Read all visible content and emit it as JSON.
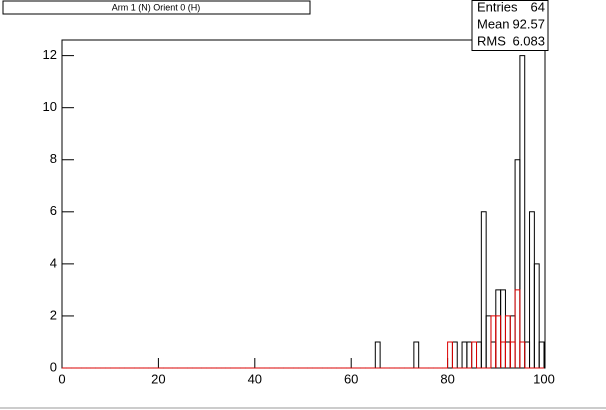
{
  "chart_data": {
    "type": "histogram",
    "title": "Arm 1 (N) Orient 0 (H)",
    "bins": [
      0,
      1,
      2,
      3,
      4,
      5,
      6,
      7,
      8,
      9,
      10,
      11,
      12,
      13,
      14,
      15,
      16,
      17,
      18,
      19,
      20,
      21,
      22,
      23,
      24,
      25,
      26,
      27,
      28,
      29,
      30,
      31,
      32,
      33,
      34,
      35,
      36,
      37,
      38,
      39,
      40,
      41,
      42,
      43,
      44,
      45,
      46,
      47,
      48,
      49,
      50,
      51,
      52,
      53,
      54,
      55,
      56,
      57,
      58,
      59,
      60,
      61,
      62,
      63,
      64,
      65,
      66,
      67,
      68,
      69,
      70,
      71,
      72,
      73,
      74,
      75,
      76,
      77,
      78,
      79,
      80,
      81,
      82,
      83,
      84,
      85,
      86,
      87,
      88,
      89,
      90,
      91,
      92,
      93,
      94,
      95,
      96,
      97,
      98,
      99,
      100
    ],
    "series": [
      {
        "color": "#000000",
        "values": [
          0,
          0,
          0,
          0,
          0,
          0,
          0,
          0,
          0,
          0,
          0,
          0,
          0,
          0,
          0,
          0,
          0,
          0,
          0,
          0,
          0,
          0,
          0,
          0,
          0,
          0,
          0,
          0,
          0,
          0,
          0,
          0,
          0,
          0,
          0,
          0,
          0,
          0,
          0,
          0,
          0,
          0,
          0,
          0,
          0,
          0,
          0,
          0,
          0,
          0,
          0,
          0,
          0,
          0,
          0,
          0,
          0,
          0,
          0,
          0,
          0,
          0,
          0,
          0,
          0,
          1,
          0,
          0,
          0,
          0,
          0,
          0,
          0,
          1,
          0,
          0,
          0,
          0,
          0,
          0,
          0,
          1,
          0,
          1,
          1,
          0,
          1,
          6,
          2,
          1,
          3,
          3,
          1,
          2,
          8,
          12,
          1,
          6,
          4,
          1
        ]
      },
      {
        "color": "#dd0000",
        "values": [
          0,
          0,
          0,
          0,
          0,
          0,
          0,
          0,
          0,
          0,
          0,
          0,
          0,
          0,
          0,
          0,
          0,
          0,
          0,
          0,
          0,
          0,
          0,
          0,
          0,
          0,
          0,
          0,
          0,
          0,
          0,
          0,
          0,
          0,
          0,
          0,
          0,
          0,
          0,
          0,
          0,
          0,
          0,
          0,
          0,
          0,
          0,
          0,
          0,
          0,
          0,
          0,
          0,
          0,
          0,
          0,
          0,
          0,
          0,
          0,
          0,
          0,
          0,
          0,
          0,
          0,
          0,
          0,
          0,
          0,
          0,
          0,
          0,
          0,
          0,
          0,
          0,
          0,
          0,
          0,
          1,
          0,
          0,
          0,
          0,
          1,
          0,
          0,
          0,
          2,
          2,
          1,
          2,
          1,
          3,
          1,
          0,
          0,
          0,
          0
        ]
      }
    ],
    "xlim": [
      0,
      100
    ],
    "ylim": [
      0,
      12.6
    ],
    "xticks": [
      0,
      20,
      40,
      60,
      80,
      100
    ],
    "yticks": [
      0,
      2,
      4,
      6,
      8,
      10,
      12
    ],
    "stats": {
      "labels": [
        "Entries",
        "Mean",
        "RMS"
      ],
      "values": [
        64,
        92.57,
        6.083
      ]
    }
  }
}
